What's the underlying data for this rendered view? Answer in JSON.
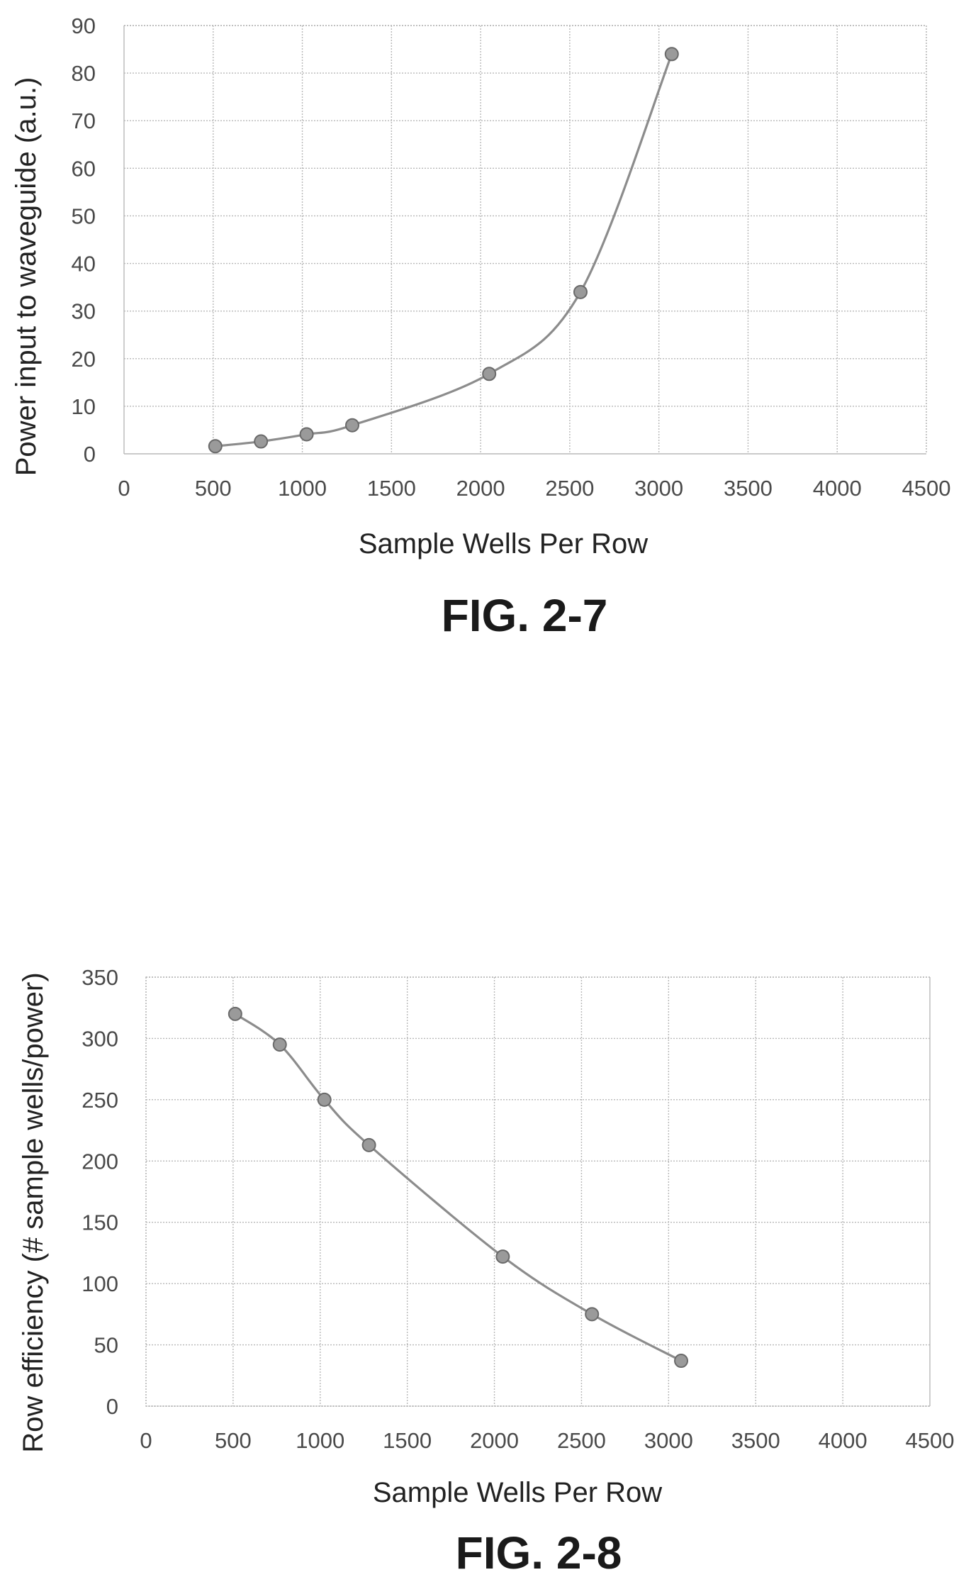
{
  "colors": {
    "series": "#8c8c8c",
    "marker": "#9a9a9a",
    "grid": "#b8b8b8",
    "text": "#222222"
  },
  "chart_data": [
    {
      "type": "line",
      "caption": "FIG. 2-7",
      "xlabel": "Sample Wells Per Row",
      "ylabel": "Power input to waveguide (a.u.)",
      "xlim": [
        0,
        4500
      ],
      "ylim": [
        0,
        90
      ],
      "xticks": [
        0,
        500,
        1000,
        1500,
        2000,
        2500,
        3000,
        3500,
        4000,
        4500
      ],
      "yticks": [
        0,
        10,
        20,
        30,
        40,
        50,
        60,
        70,
        80,
        90
      ],
      "grid": true,
      "smooth": true,
      "x": [
        512,
        768,
        1024,
        1280,
        2048,
        2560,
        3072
      ],
      "y": [
        1.6,
        2.6,
        4.1,
        6.0,
        16.8,
        34.0,
        84.0
      ]
    },
    {
      "type": "line",
      "caption": "FIG. 2-8",
      "xlabel": "Sample Wells Per Row",
      "ylabel": "Row efficiency (# sample wells/power)",
      "xlim": [
        0,
        4500
      ],
      "ylim": [
        0,
        350
      ],
      "xticks": [
        0,
        500,
        1000,
        1500,
        2000,
        2500,
        3000,
        3500,
        4000,
        4500
      ],
      "yticks": [
        0,
        50,
        100,
        150,
        200,
        250,
        300,
        350
      ],
      "grid": true,
      "smooth": true,
      "x": [
        512,
        768,
        1024,
        1280,
        2048,
        2560,
        3072
      ],
      "y": [
        320,
        295,
        250,
        213,
        122,
        75,
        37
      ]
    }
  ]
}
